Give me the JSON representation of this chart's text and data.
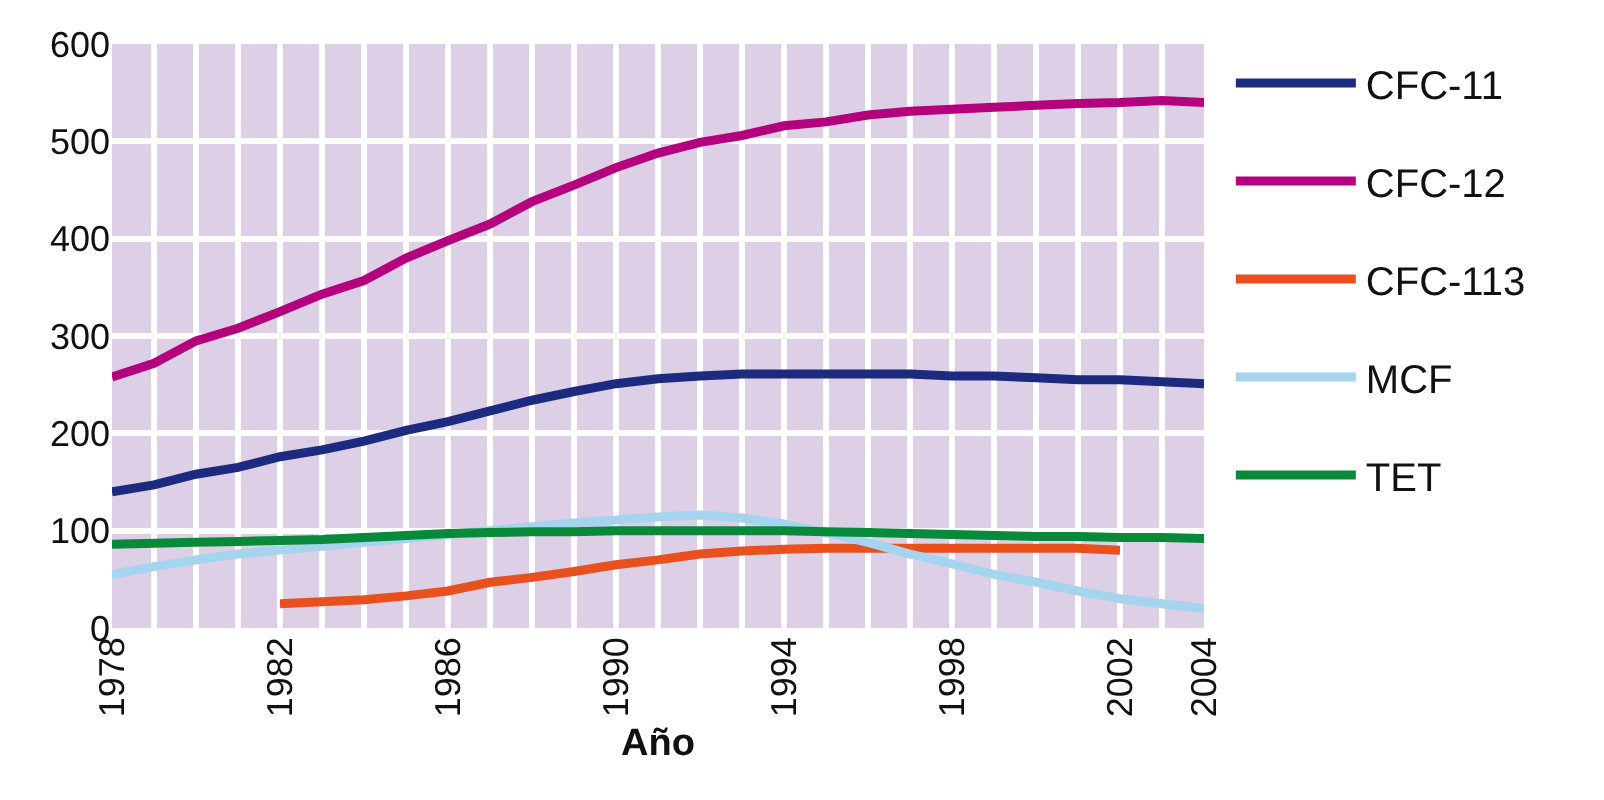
{
  "chart_data": {
    "type": "line",
    "xlabel": "Año",
    "x": [
      1978,
      1979,
      1980,
      1981,
      1982,
      1983,
      1984,
      1985,
      1986,
      1987,
      1988,
      1989,
      1990,
      1991,
      1992,
      1993,
      1994,
      1995,
      1996,
      1997,
      1998,
      1999,
      2000,
      2001,
      2002,
      2003,
      2004
    ],
    "xlim": [
      1978,
      2004
    ],
    "xticks": [
      1978,
      {
        "value": 1979,
        "label": null
      },
      {
        "value": 1980,
        "label": null
      },
      {
        "value": 1981,
        "label": null
      },
      1982,
      {
        "value": 1983,
        "label": null
      },
      {
        "value": 1984,
        "label": null
      },
      {
        "value": 1985,
        "label": null
      },
      1986,
      {
        "value": 1987,
        "label": null
      },
      {
        "value": 1988,
        "label": null
      },
      {
        "value": 1989,
        "label": null
      },
      1990,
      {
        "value": 1991,
        "label": null
      },
      {
        "value": 1992,
        "label": null
      },
      {
        "value": 1993,
        "label": null
      },
      1994,
      {
        "value": 1995,
        "label": null
      },
      {
        "value": 1996,
        "label": null
      },
      {
        "value": 1997,
        "label": null
      },
      1998,
      {
        "value": 1999,
        "label": null
      },
      {
        "value": 2000,
        "label": null
      },
      {
        "value": 2001,
        "label": null
      },
      2002,
      {
        "value": 2003,
        "label": null
      },
      2004
    ],
    "ylim": [
      0,
      600
    ],
    "yticks": [
      0,
      100,
      200,
      300,
      400,
      500,
      600
    ],
    "grid": true,
    "legend": "right",
    "marker": "none",
    "line_style": "solid",
    "series": [
      {
        "name": "CFC-11",
        "color": "#1c2a80",
        "values": [
          140,
          147,
          158,
          165,
          176,
          183,
          192,
          203,
          212,
          223,
          234,
          243,
          251,
          256,
          259,
          261,
          261,
          261,
          261,
          261,
          259,
          259,
          257,
          255,
          255,
          253,
          251
        ]
      },
      {
        "name": "CFC-12",
        "color": "#b5007e",
        "values": [
          258,
          272,
          295,
          308,
          325,
          343,
          357,
          380,
          398,
          415,
          438,
          455,
          473,
          488,
          499,
          506,
          516,
          520,
          527,
          531,
          533,
          535,
          537,
          539,
          540,
          542,
          540
        ]
      },
      {
        "name": "CFC-113",
        "color": "#e8501e",
        "x": [
          1982,
          1983,
          1984,
          1985,
          1986,
          1987,
          1988,
          1989,
          1990,
          1991,
          1992,
          1993,
          1994,
          1995,
          1996,
          1997,
          1998,
          1999,
          2000,
          2001,
          2002
        ],
        "values": [
          25,
          27,
          29,
          33,
          38,
          47,
          52,
          58,
          65,
          70,
          76,
          79,
          81,
          82,
          82,
          82,
          82,
          82,
          82,
          82,
          80
        ]
      },
      {
        "name": "MCF",
        "color": "#a4d4ee",
        "values": [
          55,
          63,
          70,
          76,
          80,
          84,
          88,
          92,
          96,
          100,
          104,
          108,
          111,
          114,
          116,
          113,
          107,
          98,
          88,
          76,
          66,
          55,
          47,
          38,
          30,
          25,
          20
        ]
      },
      {
        "name": "TET",
        "color": "#088a3a",
        "values": [
          86,
          87,
          88,
          89,
          90,
          91,
          93,
          95,
          97,
          98,
          99,
          99,
          100,
          100,
          100,
          100,
          100,
          99,
          98,
          97,
          96,
          95,
          94,
          94,
          93,
          93,
          92
        ]
      }
    ]
  }
}
